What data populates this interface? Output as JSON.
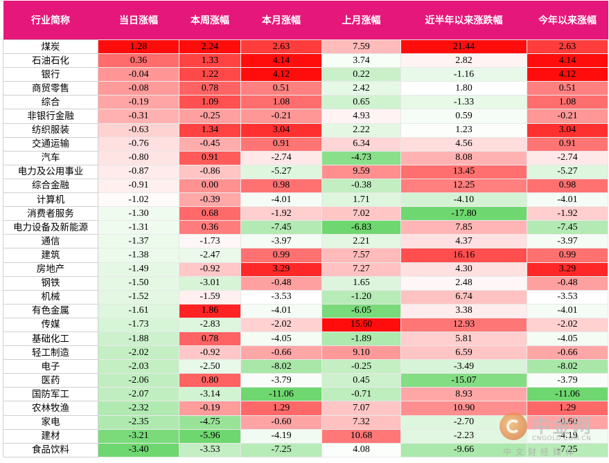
{
  "table": {
    "headers": [
      "行业简称",
      "当日涨幅",
      "本周涨幅",
      "本月涨幅",
      "上月涨幅",
      "近半年以来涨跌幅",
      "今年以来涨幅"
    ],
    "rows": [
      {
        "name": "煤炭",
        "values": [
          "1.28",
          "2.24",
          "2.63",
          "7.59",
          "21.44",
          "2.63"
        ]
      },
      {
        "name": "石油石化",
        "values": [
          "0.36",
          "1.33",
          "4.14",
          "3.74",
          "2.82",
          "4.14"
        ]
      },
      {
        "name": "银行",
        "values": [
          "-0.04",
          "1.22",
          "4.12",
          "0.22",
          "-1.16",
          "4.12"
        ]
      },
      {
        "name": "商贸零售",
        "values": [
          "-0.08",
          "0.78",
          "0.51",
          "2.42",
          "1.80",
          "0.51"
        ]
      },
      {
        "name": "综合",
        "values": [
          "-0.19",
          "1.09",
          "1.08",
          "0.65",
          "-1.33",
          "1.08"
        ]
      },
      {
        "name": "非银行金融",
        "values": [
          "-0.31",
          "-0.25",
          "-0.21",
          "4.93",
          "0.59",
          "-0.21"
        ]
      },
      {
        "name": "纺织服装",
        "values": [
          "-0.63",
          "1.34",
          "3.04",
          "2.22",
          "1.23",
          "3.04"
        ]
      },
      {
        "name": "交通运输",
        "values": [
          "-0.76",
          "-0.45",
          "0.91",
          "6.34",
          "4.56",
          "0.91"
        ]
      },
      {
        "name": "汽车",
        "values": [
          "-0.80",
          "0.91",
          "-2.74",
          "-4.73",
          "8.08",
          "-2.74"
        ]
      },
      {
        "name": "电力及公用事业",
        "values": [
          "-0.87",
          "-0.86",
          "-5.27",
          "9.59",
          "13.45",
          "-5.27"
        ]
      },
      {
        "name": "综合金融",
        "values": [
          "-0.91",
          "0.00",
          "0.98",
          "-0.38",
          "12.25",
          "0.98"
        ]
      },
      {
        "name": "计算机",
        "values": [
          "-1.02",
          "-0.39",
          "-4.01",
          "1.71",
          "-4.10",
          "-4.01"
        ]
      },
      {
        "name": "消费者服务",
        "values": [
          "-1.30",
          "0.68",
          "-1.92",
          "7.02",
          "-17.80",
          "-1.92"
        ]
      },
      {
        "name": "电力设备及新能源",
        "values": [
          "-1.31",
          "0.36",
          "-7.45",
          "-6.83",
          "7.85",
          "-7.45"
        ]
      },
      {
        "name": "通信",
        "values": [
          "-1.37",
          "-1.73",
          "-3.97",
          "2.21",
          "4.37",
          "-3.97"
        ]
      },
      {
        "name": "建筑",
        "values": [
          "-1.38",
          "-2.47",
          "0.99",
          "7.57",
          "16.16",
          "0.99"
        ]
      },
      {
        "name": "房地产",
        "values": [
          "-1.49",
          "-0.92",
          "3.29",
          "7.27",
          "4.30",
          "3.29"
        ]
      },
      {
        "name": "钢铁",
        "values": [
          "-1.50",
          "-3.01",
          "-0.48",
          "1.65",
          "2.48",
          "-0.48"
        ]
      },
      {
        "name": "机械",
        "values": [
          "-1.52",
          "-1.59",
          "-3.53",
          "-1.20",
          "6.74",
          "-3.53"
        ]
      },
      {
        "name": "有色金属",
        "values": [
          "-1.61",
          "1.86",
          "-4.01",
          "-6.05",
          "3.38",
          "-4.01"
        ]
      },
      {
        "name": "传媒",
        "values": [
          "-1.73",
          "-2.83",
          "-2.02",
          "15.60",
          "12.93",
          "-2.02"
        ]
      },
      {
        "name": "基础化工",
        "values": [
          "-1.88",
          "0.78",
          "-4.05",
          "-1.89",
          "5.81",
          "-4.05"
        ]
      },
      {
        "name": "轻工制造",
        "values": [
          "-2.02",
          "-0.92",
          "-0.66",
          "9.10",
          "6.59",
          "-0.66"
        ]
      },
      {
        "name": "电子",
        "values": [
          "-2.03",
          "-2.50",
          "-8.02",
          "-0.25",
          "-3.49",
          "-8.02"
        ]
      },
      {
        "name": "医药",
        "values": [
          "-2.06",
          "0.80",
          "-3.79",
          "0.45",
          "-15.07",
          "-3.79"
        ]
      },
      {
        "name": "国防军工",
        "values": [
          "-2.07",
          "-3.14",
          "-11.06",
          "-0.71",
          "8.93",
          "-11.06"
        ]
      },
      {
        "name": "农林牧渔",
        "values": [
          "-2.32",
          "-0.19",
          "1.29",
          "7.07",
          "10.90",
          "1.29"
        ]
      },
      {
        "name": "家电",
        "values": [
          "-2.35",
          "-4.75",
          "-0.60",
          "7.32",
          "-2.70",
          "-0.60"
        ]
      },
      {
        "name": "建材",
        "values": [
          "-3.21",
          "-5.96",
          "-4.19",
          "10.68",
          "-2.23",
          "-4.19"
        ]
      },
      {
        "name": "食品饮料",
        "values": [
          "-3.40",
          "-3.53",
          "-7.25",
          "4.08",
          "-9.66",
          "-7.25"
        ]
      }
    ]
  },
  "colors": {
    "header_bg": "#e6177a",
    "header_text": "#ffffff",
    "positive_max": "#ff0000",
    "negative_max": "#5fd35f",
    "neutral": "#ffffff"
  },
  "watermark": {
    "title": "中金网",
    "url": "CNGOLD.COM.CN",
    "subtitle": "中文财经媒体"
  }
}
